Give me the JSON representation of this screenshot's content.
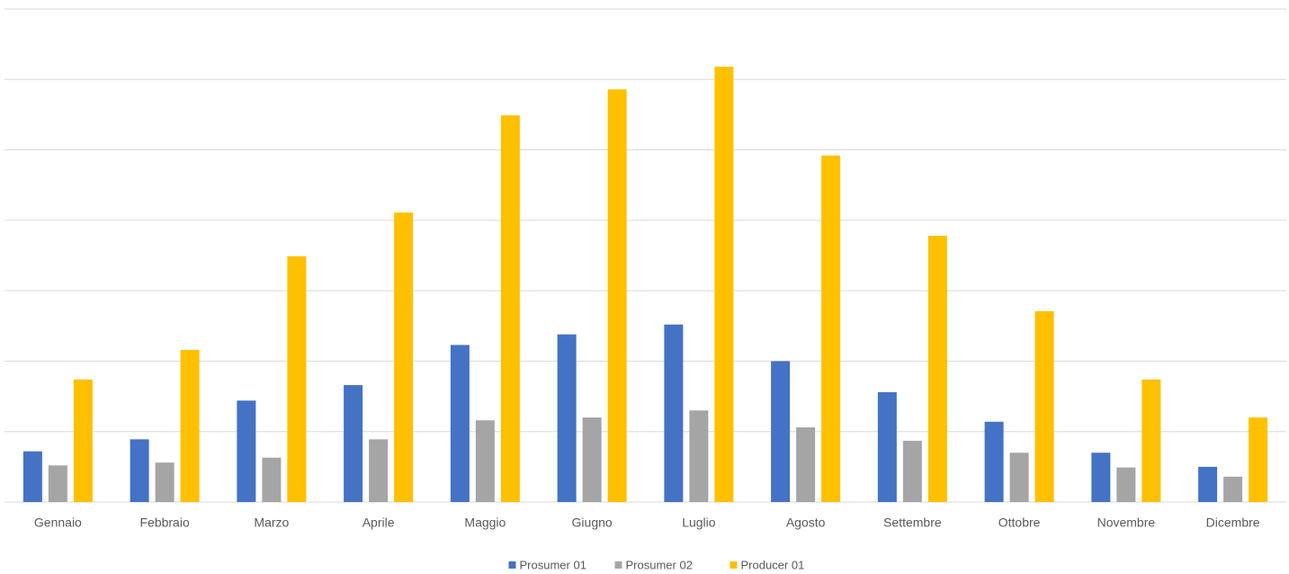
{
  "chart_data": {
    "type": "bar",
    "categories": [
      "Gennaio",
      "Febbraio",
      "Marzo",
      "Aprile",
      "Maggio",
      "Giugno",
      "Luglio",
      "Agosto",
      "Settembre",
      "Ottobre",
      "Novembre",
      "Dicembre"
    ],
    "series": [
      {
        "name": "Prosumer 01",
        "color": "#4472c4",
        "values": [
          0.72,
          0.89,
          1.44,
          1.66,
          2.23,
          2.38,
          2.52,
          2.0,
          1.56,
          1.14,
          0.7,
          0.5
        ]
      },
      {
        "name": "Prosumer 02",
        "color": "#a5a5a5",
        "values": [
          0.52,
          0.56,
          0.63,
          0.89,
          1.16,
          1.2,
          1.3,
          1.06,
          0.87,
          0.7,
          0.49,
          0.36
        ]
      },
      {
        "name": "Producer 01",
        "color": "#ffc000",
        "values": [
          1.74,
          2.16,
          3.49,
          4.11,
          5.49,
          5.86,
          6.18,
          4.92,
          3.78,
          2.71,
          1.74,
          1.2
        ]
      }
    ],
    "ylim": [
      0,
      7
    ],
    "yticks": [
      0,
      1,
      2,
      3,
      4,
      5,
      6,
      7
    ],
    "grid": true,
    "legend": "bottom"
  }
}
